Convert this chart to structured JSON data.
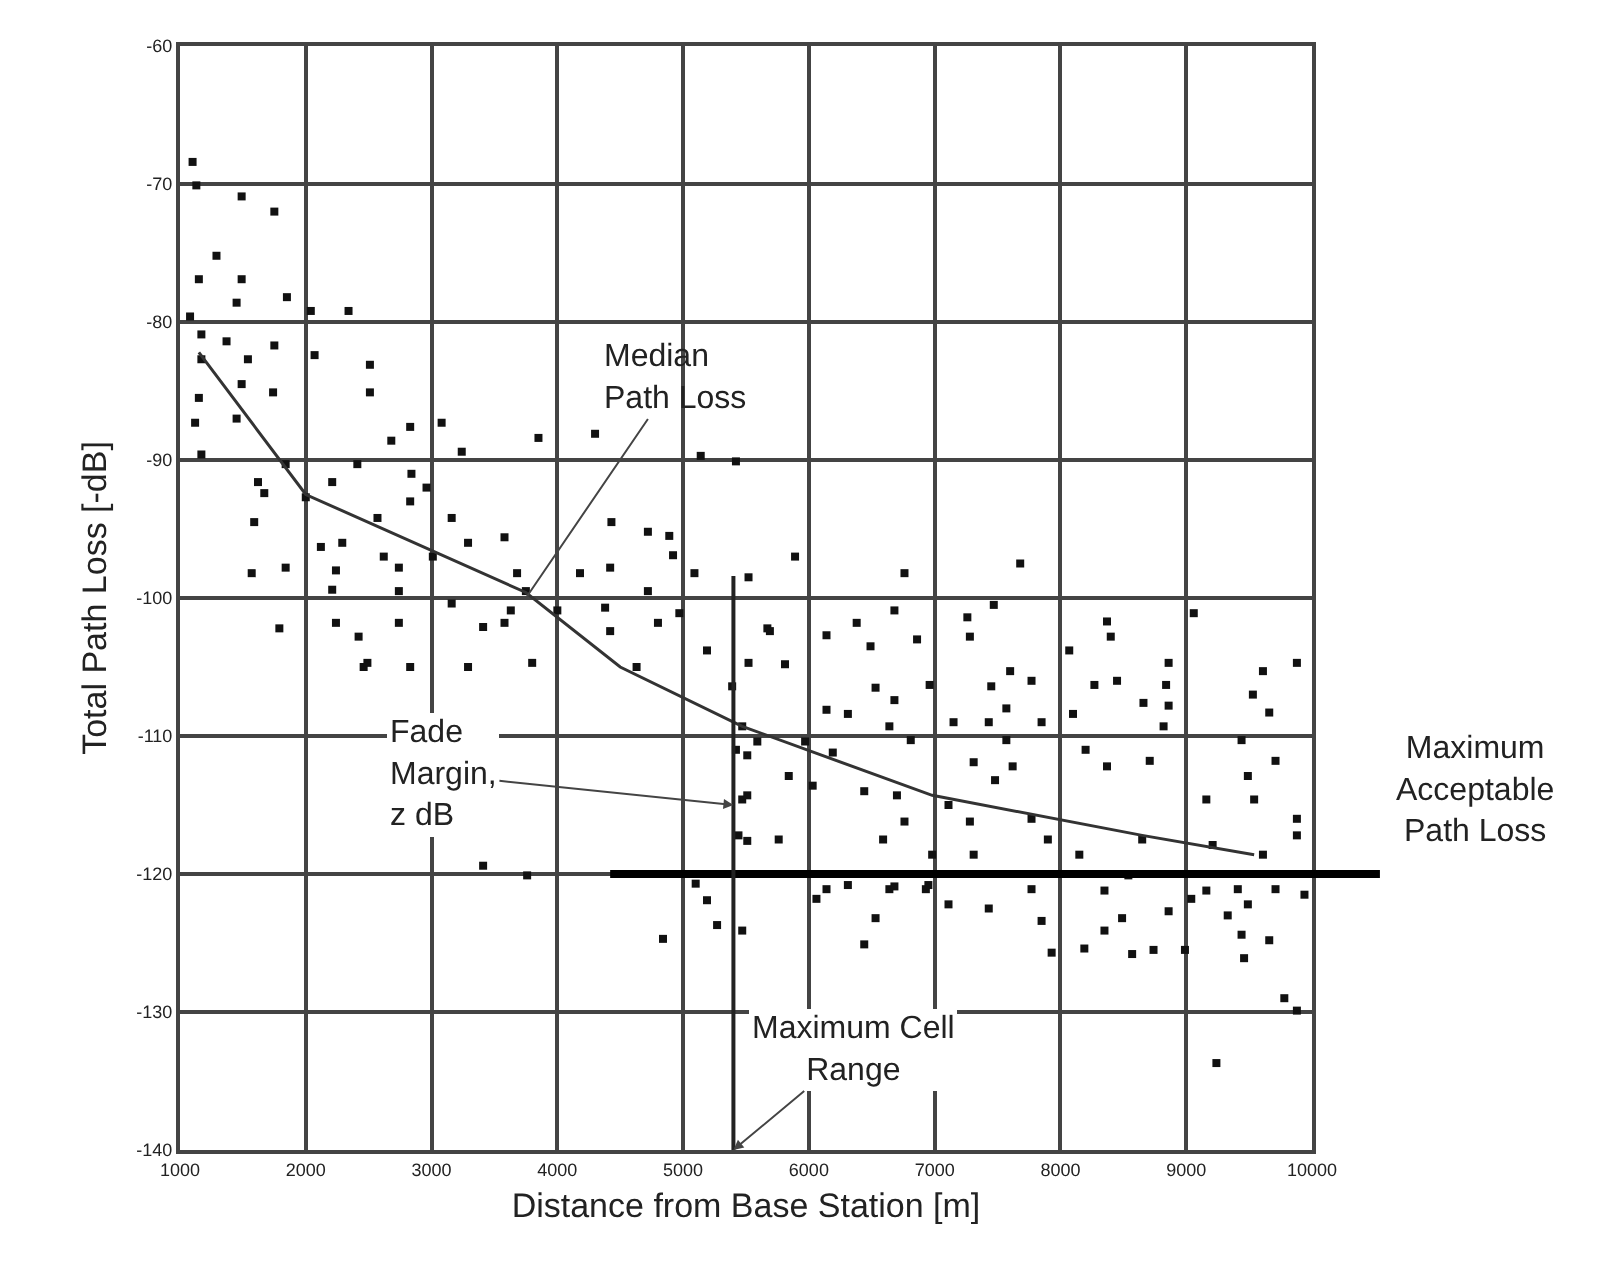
{
  "chart_data": {
    "type": "scatter",
    "xlabel": "Distance from Base Station [m]",
    "ylabel": "Total Path Loss [-dB]",
    "xlim": [
      1000,
      10000
    ],
    "xticks": [
      1000,
      2000,
      3000,
      4000,
      5000,
      6000,
      7000,
      8000,
      9000,
      10000
    ],
    "ylim": [
      -140,
      -60
    ],
    "yticks": [
      -60,
      -70,
      -80,
      -90,
      -100,
      -110,
      -120,
      -130,
      -140
    ],
    "grid": true,
    "legend": false,
    "series": [
      {
        "marker": "square",
        "color": "#111111",
        "x": [
          1100,
          1130,
          1490,
          1750,
          1290,
          1150,
          1490,
          1450,
          1850,
          2040,
          2340,
          1080,
          1170,
          1370,
          1750,
          1170,
          1540,
          2070,
          2510,
          1490,
          1740,
          1150,
          2510,
          1450,
          1120,
          2830,
          3080,
          2680,
          3850,
          4300,
          3240,
          1170,
          1840,
          2410,
          5140,
          5420,
          1620,
          2210,
          2840,
          2960,
          1670,
          2000,
          2830,
          1590,
          2570,
          3160,
          4430,
          4720,
          4890,
          2120,
          2290,
          3290,
          3580,
          2620,
          3010,
          4920,
          5090,
          5520,
          1570,
          1840,
          2240,
          2740,
          3680,
          4180,
          4420,
          3750,
          2740,
          2210,
          4720,
          3160,
          3630,
          4000,
          4380,
          4970,
          1790,
          2240,
          2420,
          2740,
          3410,
          3580,
          4420,
          4800,
          5670,
          2460,
          2830,
          3290,
          3800,
          4630,
          5190,
          5890,
          6760,
          7680,
          6680,
          7470,
          9060,
          5690,
          6140,
          6380,
          6860,
          7260,
          7280,
          8370,
          8400,
          6490,
          5520,
          5810,
          5390,
          8070,
          8860,
          9610,
          9880,
          6530,
          6960,
          7450,
          7600,
          7770,
          8270,
          8450,
          8840,
          9530,
          8660,
          6140,
          6680,
          7570,
          6310,
          8100,
          8860,
          9660,
          5470,
          5970,
          6640,
          7150,
          7430,
          7850,
          8820,
          9440,
          6810,
          7570,
          8200,
          5420,
          5590,
          6190,
          9710,
          7310,
          7620,
          8370,
          8710,
          9490,
          5840,
          6030,
          6440,
          6700,
          7480,
          7110,
          7280,
          9160,
          9540,
          5470,
          7900,
          7770,
          6760,
          6590,
          8650,
          9210,
          9880,
          5760,
          5440,
          9880,
          8150,
          7310,
          9610,
          6980,
          6140,
          6640,
          6930,
          8350,
          8540,
          9160,
          9410,
          9710,
          9940,
          7770,
          6060,
          6310,
          6680,
          6950,
          6530,
          6440,
          7110,
          7430,
          7850,
          7930,
          8190,
          8350,
          8490,
          8570,
          8740,
          8860,
          8990,
          9040,
          9330,
          9490,
          9440,
          9660,
          9460,
          9780,
          9880,
          9240,
          3410,
          3760,
          5100,
          5190,
          5270,
          4840,
          5470,
          5510,
          5510,
          5510,
          2490
        ],
        "values": [
          -68.4,
          -70.1,
          -70.9,
          -72,
          -75.2,
          -76.9,
          -76.9,
          -78.6,
          -78.2,
          -79.2,
          -79.2,
          -79.6,
          -80.9,
          -81.4,
          -81.7,
          -82.7,
          -82.7,
          -82.4,
          -83.1,
          -84.5,
          -85.1,
          -85.5,
          -85.1,
          -87,
          -87.3,
          -87.6,
          -87.3,
          -88.6,
          -88.4,
          -88.1,
          -89.4,
          -89.6,
          -90.3,
          -90.3,
          -89.7,
          -90.1,
          -91.6,
          -91.6,
          -91,
          -92,
          -92.4,
          -92.7,
          -93,
          -94.5,
          -94.2,
          -94.2,
          -94.5,
          -95.2,
          -95.5,
          -96.3,
          -96,
          -96,
          -95.6,
          -97,
          -97,
          -96.9,
          -98.2,
          -98.5,
          -98.2,
          -97.8,
          -98,
          -97.8,
          -98.2,
          -98.2,
          -97.8,
          -99.5,
          -99.5,
          -99.4,
          -99.5,
          -100.4,
          -100.9,
          -100.9,
          -100.7,
          -101.1,
          -102.2,
          -101.8,
          -102.8,
          -101.8,
          -102.1,
          -101.8,
          -102.4,
          -101.8,
          -102.2,
          -105,
          -105,
          -105,
          -104.7,
          -105,
          -103.8,
          -97,
          -98.2,
          -97.5,
          -100.9,
          -100.5,
          -101.1,
          -102.4,
          -102.7,
          -101.8,
          -103,
          -101.4,
          -102.8,
          -101.7,
          -102.8,
          -103.5,
          -104.7,
          -104.8,
          -106.4,
          -103.8,
          -104.7,
          -105.3,
          -104.7,
          -106.5,
          -106.3,
          -106.4,
          -105.3,
          -106,
          -106.3,
          -106,
          -106.3,
          -107,
          -107.6,
          -108.1,
          -107.4,
          -108,
          -108.4,
          -108.4,
          -107.8,
          -108.3,
          -109.3,
          -110.4,
          -109.3,
          -109,
          -109,
          -109,
          -109.3,
          -110.3,
          -110.3,
          -110.3,
          -111,
          -111,
          -110.4,
          -111.2,
          -111.8,
          -111.9,
          -112.2,
          -112.2,
          -111.8,
          -112.9,
          -112.9,
          -113.6,
          -114,
          -114.3,
          -113.2,
          -115,
          -116.2,
          -114.6,
          -114.6,
          -114.6,
          -117.5,
          -116,
          -116.2,
          -117.5,
          -117.5,
          -117.9,
          -116,
          -117.5,
          -117.2,
          -117.2,
          -118.6,
          -118.6,
          -118.6,
          -118.6,
          -121.1,
          -121.1,
          -121.1,
          -121.2,
          -120.1,
          -121.2,
          -121.1,
          -121.1,
          -121.5,
          -121.1,
          -121.8,
          -120.8,
          -120.9,
          -120.8,
          -123.2,
          -125.1,
          -122.2,
          -122.5,
          -123.4,
          -125.7,
          -125.4,
          -124.1,
          -123.2,
          -125.8,
          -125.5,
          -122.7,
          -125.5,
          -121.8,
          -123,
          -122.2,
          -124.4,
          -124.8,
          -126.1,
          -129,
          -129.9,
          -133.7,
          -119.4,
          -120.1,
          -120.7,
          -121.9,
          -123.7,
          -124.7,
          -124.1,
          -111.4,
          -114.3,
          -117.6,
          -104.7
        ]
      },
      {
        "type": "line",
        "marker": "none",
        "color": "#333333",
        "x": [
          1150,
          2000,
          3750,
          4500,
          5470,
          6980,
          8650,
          9540
        ],
        "values": [
          -82.2,
          -92.5,
          -99.6,
          -105,
          -109.3,
          -114.3,
          -117.2,
          -118.6
        ]
      }
    ],
    "ref_lines": [
      {
        "axis": "y",
        "value": -120,
        "label": "Maximum Acceptable Path Loss",
        "color": "#000000"
      },
      {
        "axis": "x",
        "value": 5400,
        "label": "Maximum Cell Range",
        "color": "#222222"
      }
    ],
    "annotations": [
      {
        "text": "Median Path Loss",
        "x": 3750,
        "y": -100
      },
      {
        "text": "Fade Margin, z dB",
        "x": 5400,
        "y": -115
      }
    ]
  }
}
